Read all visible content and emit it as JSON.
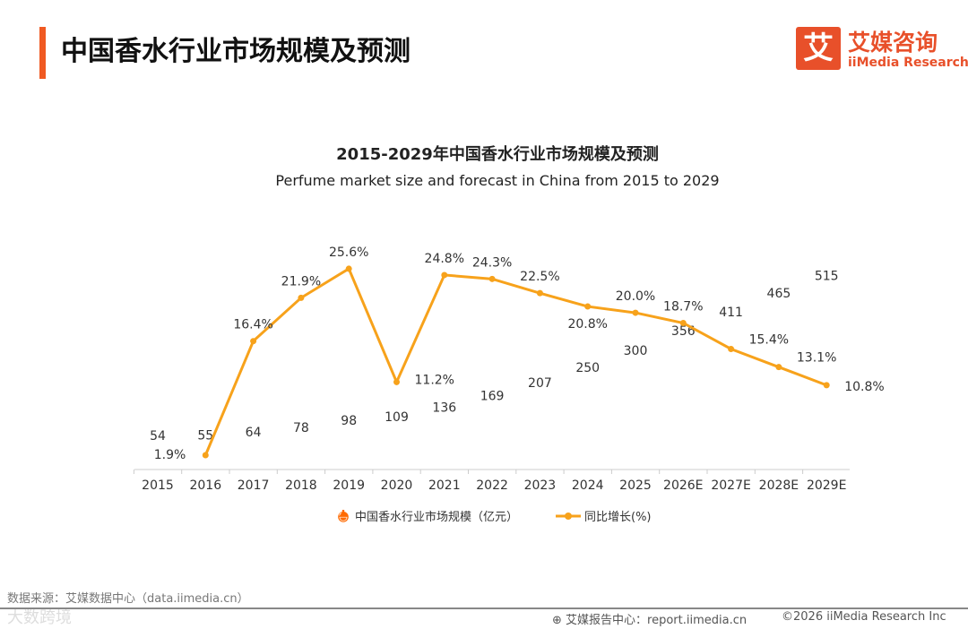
{
  "header": {
    "title": "中国香水行业市场规模及预测"
  },
  "logo": {
    "mark": "艾",
    "cn": "艾媒咨询",
    "en": "iiMedia Research"
  },
  "chart_data": {
    "type": "bar",
    "title": "2015-2029年中国香水行业市场规模及预测",
    "subtitle": "Perfume market size and forecast in China from 2015 to 2029",
    "categories": [
      "2015",
      "2016",
      "2017",
      "2018",
      "2019",
      "2020",
      "2021",
      "2022",
      "2023",
      "2024",
      "2025",
      "2026E",
      "2027E",
      "2028E",
      "2029E"
    ],
    "series": [
      {
        "name": "中国香水行业市场规模（亿元）",
        "type": "pictorial-bar",
        "values": [
          54,
          55,
          64,
          78,
          98,
          109,
          136,
          169,
          207,
          250,
          300,
          356,
          411,
          465,
          515
        ],
        "color": "#ff6a00"
      },
      {
        "name": "同比增长(%)",
        "type": "line",
        "values": [
          null,
          1.9,
          16.4,
          21.9,
          25.6,
          11.2,
          24.8,
          24.3,
          22.5,
          20.8,
          20.0,
          18.7,
          15.4,
          13.1,
          10.8
        ],
        "labels": [
          "",
          "1.9%",
          "16.4%",
          "21.9%",
          "25.6%",
          "11.2%",
          "24.8%",
          "24.3%",
          "22.5%",
          "20.8%",
          "20.0%",
          "18.7%",
          "15.4%",
          "13.1%",
          "10.8%"
        ],
        "color": "#f7a21b"
      }
    ],
    "legend": "bottom-center"
  },
  "footer": {
    "source": "数据来源：艾媒数据中心（data.iimedia.cn）",
    "watermark": "大数跨境",
    "report": "艾媒报告中心：report.iimedia.cn",
    "copyright": "©2026  iiMedia Research  Inc"
  }
}
